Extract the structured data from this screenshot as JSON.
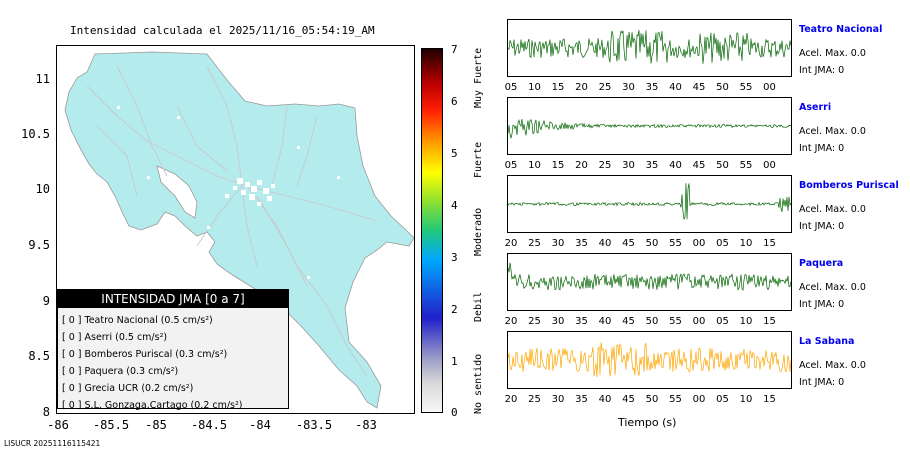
{
  "title": "Intensidad calculada el 2025/11/16_05:54:19_AM",
  "map": {
    "y_ticks": [
      "11",
      "10.5",
      "10",
      "9.5",
      "9",
      "8.5",
      "8"
    ],
    "x_ticks": [
      "-86",
      "-85.5",
      "-85",
      "-84.5",
      "-84",
      "-83.5",
      "-83"
    ],
    "land_color": "#b4ecee",
    "legend": {
      "title": "INTENSIDAD JMA [0 a 7]",
      "rows": [
        "[ 0 ]  Teatro Nacional (0.5 cm/s²)",
        "[ 0 ]  Aserri (0.5 cm/s²)",
        "[ 0 ]  Bomberos Puriscal (0.3 cm/s²)",
        "[ 0 ]  Paquera (0.3 cm/s²)",
        "[ 0 ]  Grecia UCR (0.2 cm/s²)",
        "[ 0 ]  S.L. Gonzaga.Cartago (0.2 cm/s²)"
      ]
    }
  },
  "colorbar": {
    "numbers": [
      "7",
      "6",
      "5",
      "4",
      "3",
      "2",
      "1",
      "0"
    ],
    "labels": [
      "Muy Fuerte",
      "Fuerte",
      "Moderado",
      "Debil",
      "No sentido"
    ]
  },
  "stations": [
    {
      "name": "Teatro Nacional",
      "acel": "Acel. Max. 0.0",
      "int": "Int JMA: 0",
      "color": "#006400",
      "ticks": [
        "05",
        "10",
        "15",
        "20",
        "25",
        "30",
        "35",
        "40",
        "45",
        "50",
        "55",
        "00"
      ]
    },
    {
      "name": "Aserri",
      "acel": "Acel. Max. 0.0",
      "int": "Int JMA: 0",
      "color": "#006400",
      "ticks": [
        "05",
        "10",
        "15",
        "20",
        "25",
        "30",
        "35",
        "40",
        "45",
        "50",
        "55",
        "00"
      ]
    },
    {
      "name": "Bomberos Puriscal",
      "acel": "Acel. Max. 0.0",
      "int": "Int JMA: 0",
      "color": "#006400",
      "ticks": [
        "20",
        "25",
        "30",
        "35",
        "40",
        "45",
        "50",
        "55",
        "00",
        "05",
        "10",
        "15"
      ]
    },
    {
      "name": "Paquera",
      "acel": "Acel. Max. 0.0",
      "int": "Int JMA: 0",
      "color": "#006400",
      "ticks": [
        "20",
        "25",
        "30",
        "35",
        "40",
        "45",
        "50",
        "55",
        "00",
        "05",
        "10",
        "15"
      ]
    },
    {
      "name": "La Sabana",
      "acel": "Acel. Max. 0.0",
      "int": "Int JMA: 0",
      "color": "#ffa500",
      "ticks": [
        "20",
        "25",
        "30",
        "35",
        "40",
        "45",
        "50",
        "55",
        "00",
        "05",
        "10",
        "15"
      ]
    }
  ],
  "xlabel": "Tiempo (s)",
  "footer": "LISUCR 20251116115421"
}
